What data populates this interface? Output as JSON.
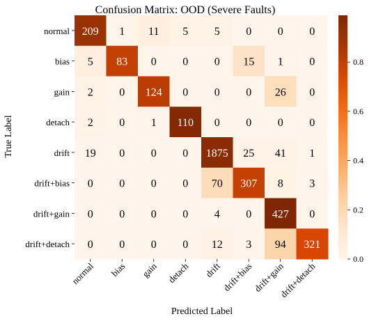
{
  "chart_data": {
    "type": "heatmap",
    "title": "Confusion Matrix: OOD (Severe Faults)",
    "xlabel": "Predicted Label",
    "ylabel": "True Label",
    "x_categories": [
      "normal",
      "bias",
      "gain",
      "detach",
      "drift",
      "drift+bias",
      "drift+gain",
      "drift+detach"
    ],
    "y_categories": [
      "normal",
      "bias",
      "gain",
      "detach",
      "drift",
      "drift+bias",
      "drift+gain",
      "drift+detach"
    ],
    "values": [
      [
        209,
        1,
        11,
        5,
        5,
        0,
        0,
        0
      ],
      [
        5,
        83,
        0,
        0,
        0,
        15,
        1,
        0
      ],
      [
        2,
        0,
        124,
        0,
        0,
        0,
        26,
        0
      ],
      [
        2,
        0,
        1,
        110,
        0,
        0,
        0,
        0
      ],
      [
        19,
        0,
        0,
        0,
        1875,
        25,
        41,
        1
      ],
      [
        0,
        0,
        0,
        0,
        70,
        307,
        8,
        3
      ],
      [
        0,
        0,
        0,
        0,
        4,
        0,
        427,
        0
      ],
      [
        0,
        0,
        0,
        0,
        12,
        3,
        94,
        321
      ]
    ],
    "normalization": "row",
    "colormap": "Oranges",
    "colorbar": {
      "range": [
        0.0,
        0.99
      ],
      "ticks": [
        0.0,
        0.2,
        0.4,
        0.6,
        0.8
      ],
      "tick_labels": [
        "0.0",
        "0.2",
        "0.4",
        "0.6",
        "0.8"
      ]
    },
    "colors": {
      "low": "#fff5eb",
      "high": "#7f2704",
      "text_dark": "#000000",
      "text_light": "#ffffff"
    }
  }
}
